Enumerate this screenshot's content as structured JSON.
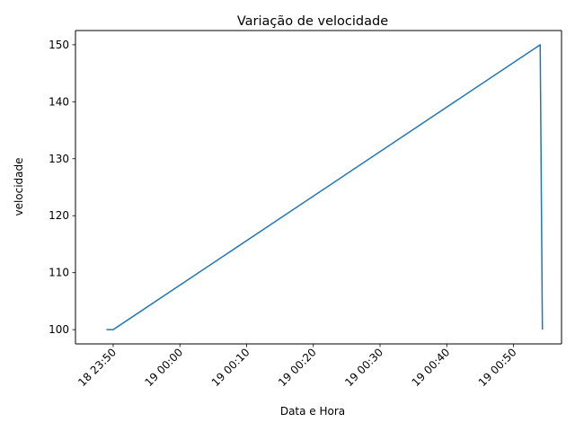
{
  "chart_data": {
    "type": "line",
    "title": "Variação de velocidade",
    "xlabel": "Data e Hora",
    "ylabel": "velocidade",
    "x_ticks": [
      "18 23:50",
      "19 00:00",
      "19 00:10",
      "19 00:20",
      "19 00:30",
      "19 00:40",
      "19 00:50"
    ],
    "y_ticks": [
      "100",
      "110",
      "120",
      "130",
      "140",
      "150"
    ],
    "xlim": [
      "2024-01-18T23:44:21",
      "2024-01-19T00:57:12"
    ],
    "ylim": [
      97.5,
      152.5
    ],
    "grid": false,
    "series": [
      {
        "color": "#1f77b4",
        "points": [
          {
            "x": "2024-01-18T23:49:00",
            "y": 100
          },
          {
            "x": "2024-01-18T23:50:00",
            "y": 100
          },
          {
            "x": "2024-01-19T00:54:00",
            "y": 150
          },
          {
            "x": "2024-01-19T00:54:20",
            "y": 100
          }
        ]
      }
    ]
  }
}
